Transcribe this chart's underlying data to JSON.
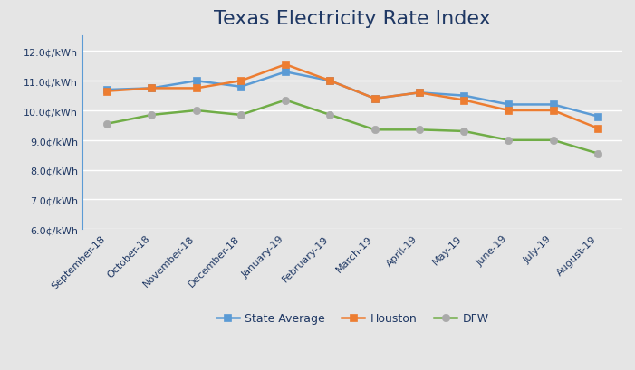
{
  "title": "Texas Electricity Rate Index",
  "categories": [
    "September-18",
    "October-18",
    "November-18",
    "December-18",
    "January-19",
    "February-19",
    "March-19",
    "April-19",
    "May-19",
    "June-19",
    "July-19",
    "August-19"
  ],
  "series_order": [
    "State Average",
    "Houston",
    "DFW"
  ],
  "series": {
    "State Average": [
      10.7,
      10.75,
      11.0,
      10.8,
      11.3,
      11.0,
      10.4,
      10.6,
      10.5,
      10.2,
      10.2,
      9.8
    ],
    "Houston": [
      10.65,
      10.75,
      10.75,
      11.0,
      11.55,
      11.0,
      10.4,
      10.6,
      10.35,
      10.0,
      10.0,
      9.4
    ],
    "DFW": [
      9.55,
      9.85,
      10.0,
      9.85,
      10.35,
      9.85,
      9.35,
      9.35,
      9.3,
      9.0,
      9.0,
      8.55
    ]
  },
  "line_colors": {
    "State Average": "#5B9BD5",
    "Houston": "#ED7D31",
    "DFW": "#70AD47"
  },
  "marker_face_colors": {
    "State Average": "#5B9BD5",
    "Houston": "#ED7D31",
    "DFW": "#AAAAAA"
  },
  "marker_edge_colors": {
    "State Average": "#5B9BD5",
    "Houston": "#ED7D31",
    "DFW": "#AAAAAA"
  },
  "marker_shapes": {
    "State Average": "s",
    "Houston": "s",
    "DFW": "o"
  },
  "ylim": [
    6.0,
    12.5
  ],
  "yticks": [
    6.0,
    7.0,
    8.0,
    9.0,
    10.0,
    11.0,
    12.0
  ],
  "background_color": "#E5E5E5",
  "title_color": "#1F3864",
  "tick_label_color": "#1F3864",
  "grid_color": "#FFFFFF",
  "spine_color": "#5B9BD5",
  "title_fontsize": 16,
  "tick_fontsize": 8,
  "legend_fontsize": 9
}
